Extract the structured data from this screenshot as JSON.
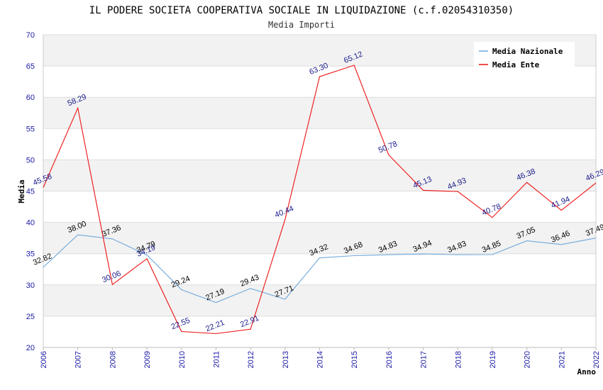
{
  "chart_data": {
    "type": "line",
    "title": "IL PODERE SOCIETA COOPERATIVA SOCIALE IN LIQUIDAZIONE (c.f.02054310350)",
    "subtitle": "Media Importi",
    "xlabel": "Anno",
    "ylabel": "Media",
    "ylim": [
      20,
      70
    ],
    "yticks": [
      20,
      25,
      30,
      35,
      40,
      45,
      50,
      55,
      60,
      65,
      70
    ],
    "grid": true,
    "legend_position": "top-right",
    "x": [
      "2006",
      "2007",
      "2008",
      "2009",
      "2010",
      "2011",
      "2012",
      "2013",
      "2014",
      "2015",
      "2016",
      "2017",
      "2018",
      "2019",
      "2020",
      "2021",
      "2022"
    ],
    "series": [
      {
        "name": "Media Nazionale",
        "color": "#6fa8dc",
        "label_color": "#000000",
        "values": [
          32.82,
          38.0,
          37.36,
          34.79,
          29.24,
          27.19,
          29.43,
          27.71,
          34.32,
          34.68,
          34.83,
          34.94,
          34.83,
          34.85,
          37.05,
          36.46,
          37.49
        ],
        "labels": [
          "32.82",
          "38.00",
          "37.36",
          "34.79",
          "29.24",
          "27.19",
          "29.43",
          "27.71",
          "34.32",
          "34.68",
          "34.83",
          "34.94",
          "34.83",
          "34.85",
          "37.05",
          "36.46",
          "37.49"
        ]
      },
      {
        "name": "Media Ente",
        "color": "#ee1111",
        "label_color": "#1a1a8c",
        "values": [
          45.58,
          58.29,
          30.06,
          34.19,
          22.55,
          22.21,
          22.91,
          40.44,
          63.3,
          65.12,
          50.78,
          45.13,
          44.93,
          40.78,
          46.38,
          41.94,
          46.29
        ],
        "labels": [
          "45.58",
          "58.29",
          "30.06",
          "34.19",
          "22.55",
          "22.21",
          "22.91",
          "40.44",
          "63.30",
          "65.12",
          "50.78",
          "45.13",
          "44.93",
          "40.78",
          "46.38",
          "41.94",
          "46.29"
        ]
      }
    ]
  }
}
